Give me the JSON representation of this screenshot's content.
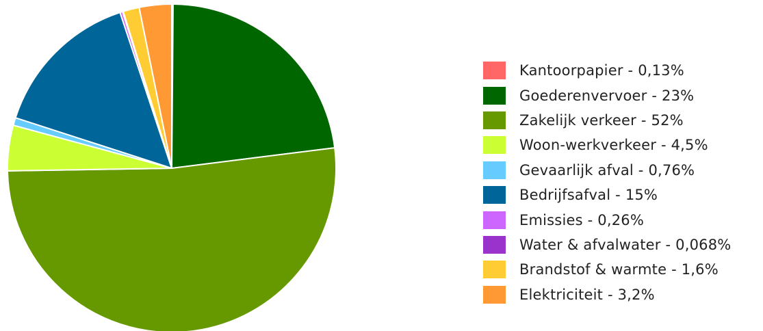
{
  "chart_data": {
    "type": "pie",
    "title": "",
    "start_angle_deg": 0,
    "direction": "clockwise",
    "slices": [
      {
        "label": "Kantoorpapier - 0,13%",
        "value": 0.13,
        "color": "#ff6666"
      },
      {
        "label": "Goederenvervoer - 23%",
        "value": 23,
        "color": "#006600"
      },
      {
        "label": "Zakelijk verkeer - 52%",
        "value": 52,
        "color": "#669900"
      },
      {
        "label": "Woon-werkverkeer - 4,5%",
        "value": 4.5,
        "color": "#ccff33"
      },
      {
        "label": "Gevaarlijk afval - 0,76%",
        "value": 0.76,
        "color": "#66ccff"
      },
      {
        "label": "Bedrijfsafval - 15%",
        "value": 15,
        "color": "#006699"
      },
      {
        "label": "Emissies - 0,26%",
        "value": 0.26,
        "color": "#cc66ff"
      },
      {
        "label": "Water & afvalwater - 0,068%",
        "value": 0.068,
        "color": "#9933cc"
      },
      {
        "label": "Brandstof & warmte - 1,6%",
        "value": 1.6,
        "color": "#ffcc33"
      },
      {
        "label": "Elektriciteit - 3,2%",
        "value": 3.2,
        "color": "#ff9933"
      }
    ],
    "legend_position": "right"
  }
}
